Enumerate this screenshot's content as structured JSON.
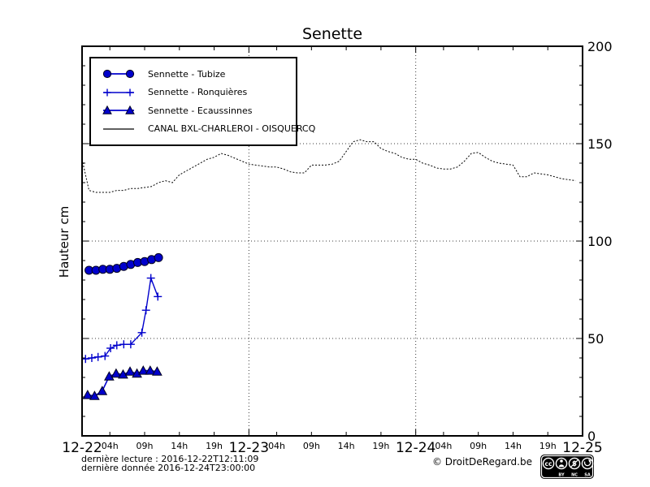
{
  "title": "Senette",
  "ylabel": "Hauteur cm",
  "legend": {
    "items": [
      {
        "id": "tubize",
        "label": "Sennette - Tubize",
        "marker": "circle"
      },
      {
        "id": "ronquieres",
        "label": "Sennette - Ronquières",
        "marker": "plus"
      },
      {
        "id": "ecaussinnes",
        "label": "Sennette - Ecaussinnes",
        "marker": "triangle"
      },
      {
        "id": "canal",
        "label": "CANAL BXL-CHARLEROI  - OISQUERCQ",
        "marker": "line"
      }
    ]
  },
  "footer": {
    "line1": "dernière lecture : 2016-12-22T12:11:09",
    "line2": "dernière donnée  2016-12-24T23:00:00",
    "copyright": "© DroitDeRegard.be",
    "license": {
      "cc": "cc",
      "by": "BY",
      "nc": "NC",
      "sa": "SA"
    }
  },
  "colors": {
    "series_blue": "#0000cc",
    "canal_black": "#000000",
    "grid": "#3a3a3a"
  },
  "chart_data": {
    "type": "line",
    "title": "Senette",
    "ylabel": "Hauteur cm",
    "x_unit": "hours since 2016-12-22 00:00",
    "xlim": [
      0,
      72
    ],
    "ylim": [
      0,
      200
    ],
    "yticks": [
      0,
      50,
      100,
      150,
      200
    ],
    "y_minor_step": 10,
    "grid": {
      "h": [
        50,
        100,
        150
      ],
      "v": [
        24,
        48
      ]
    },
    "legend_position": "upper left",
    "x_day_ticks": [
      {
        "t": 0,
        "label": "12-22"
      },
      {
        "t": 24,
        "label": "12-23"
      },
      {
        "t": 48,
        "label": "12-24"
      },
      {
        "t": 72,
        "label": "12-25"
      }
    ],
    "x_hour_ticks": [
      {
        "t": 4,
        "label": "04h"
      },
      {
        "t": 9,
        "label": "09h"
      },
      {
        "t": 14,
        "label": "14h"
      },
      {
        "t": 19,
        "label": "19h"
      },
      {
        "t": 28,
        "label": "04h"
      },
      {
        "t": 33,
        "label": "09h"
      },
      {
        "t": 38,
        "label": "14h"
      },
      {
        "t": 43,
        "label": "19h"
      },
      {
        "t": 52,
        "label": "04h"
      },
      {
        "t": 57,
        "label": "09h"
      },
      {
        "t": 62,
        "label": "14h"
      },
      {
        "t": 67,
        "label": "19h"
      }
    ],
    "series": [
      {
        "id": "canal",
        "name": "CANAL BXL-CHARLEROI  - OISQUERCQ",
        "marker": "none",
        "dash": true,
        "width": 1,
        "color": "#000000",
        "x_start": 0,
        "x_step": 1,
        "y": [
          142,
          126,
          125,
          125,
          125,
          126,
          126,
          127,
          127,
          127.5,
          128,
          130,
          131,
          130,
          134,
          136,
          138,
          140,
          142,
          143,
          145,
          144,
          142.5,
          141,
          139.5,
          139,
          138.5,
          138,
          138,
          137,
          135.5,
          135,
          135,
          139,
          139,
          139,
          139.5,
          141,
          146,
          151,
          152,
          151,
          151,
          147.5,
          146,
          145,
          143,
          142,
          142,
          140,
          139,
          137.5,
          137,
          137,
          138,
          141,
          145,
          145.5,
          143,
          141,
          140,
          139.5,
          139,
          133,
          133,
          135,
          134.5,
          134,
          133,
          132,
          131.5,
          131
        ]
      },
      {
        "id": "tubize",
        "name": "Sennette - Tubize",
        "marker": "circle",
        "width": 1.6,
        "color": "#0000cc",
        "x": [
          1,
          2,
          3,
          4,
          5,
          6,
          7,
          8,
          9,
          10,
          11
        ],
        "y": [
          85,
          85,
          85.5,
          85.5,
          86,
          87,
          88,
          89,
          89.5,
          90.5,
          91.5
        ]
      },
      {
        "id": "ronquieres",
        "name": "Sennette - Ronquières",
        "marker": "plus",
        "width": 1.4,
        "color": "#0000cc",
        "x": [
          0.5,
          1.4,
          2.3,
          3.3,
          4.1,
          5,
          6,
          7,
          8.6,
          9.2,
          9.9,
          10.9
        ],
        "y": [
          39.5,
          40,
          40.5,
          41,
          45,
          46.5,
          47,
          47,
          53,
          64.5,
          81,
          71.5
        ]
      },
      {
        "id": "ecaussinnes",
        "name": "Sennette - Ecaussinnes",
        "marker": "triangle",
        "width": 1.6,
        "color": "#0000cc",
        "x": [
          0.8,
          1.8,
          2.9,
          3.9,
          4.9,
          5.9,
          6.9,
          7.9,
          8.8,
          9.8,
          10.8
        ],
        "y": [
          21,
          20.5,
          23,
          30.5,
          32,
          31.5,
          33,
          32,
          33.5,
          33.5,
          33
        ]
      }
    ]
  }
}
